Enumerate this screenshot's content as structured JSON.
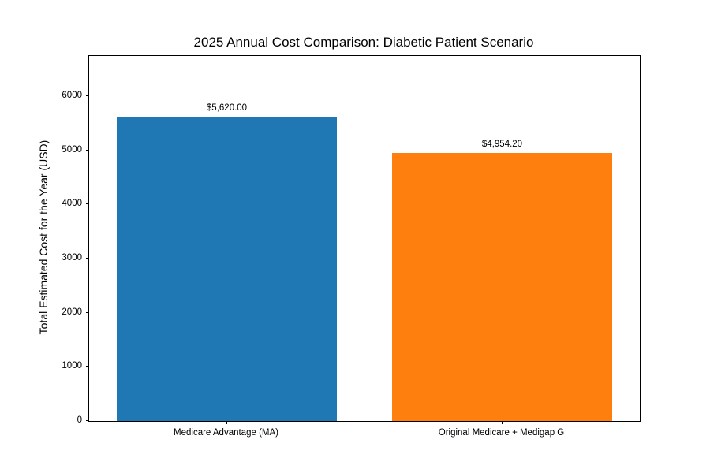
{
  "chart_data": {
    "type": "bar",
    "title": "2025 Annual Cost Comparison: Diabetic Patient Scenario",
    "categories": [
      "Medicare Advantage (MA)",
      "Original Medicare + Medigap G"
    ],
    "values": [
      5620.0,
      4954.2
    ],
    "value_labels": [
      "$5,620.00",
      "$4,954.20"
    ],
    "bar_colors": [
      "#1f77b4",
      "#ff7f0e"
    ],
    "xlabel": "",
    "ylabel": "Total Estimated Cost for the Year (USD)",
    "ylim": [
      0,
      6744
    ],
    "xlim": [
      -0.5,
      1.5
    ],
    "yticks": [
      0,
      1000,
      2000,
      3000,
      4000,
      5000,
      6000
    ],
    "bar_width": 0.8,
    "grid": false,
    "legend": null
  }
}
